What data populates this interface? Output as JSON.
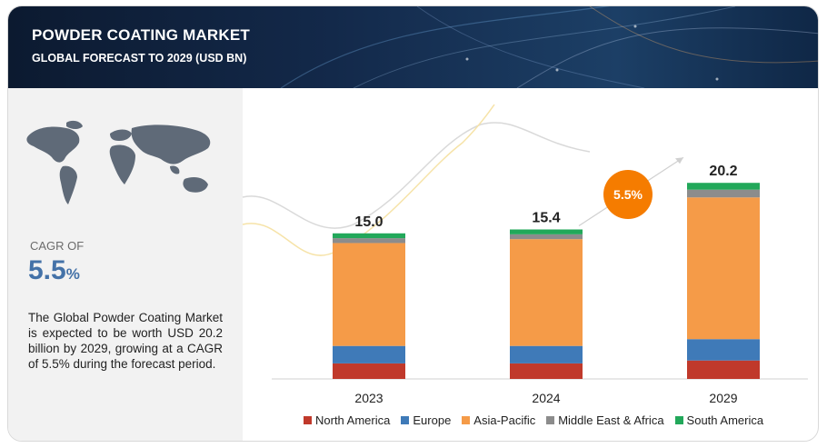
{
  "header": {
    "title": "POWDER COATING MARKET",
    "subtitle": "GLOBAL FORECAST TO 2029 (USD BN)"
  },
  "panel": {
    "cagr_label": "CAGR OF",
    "cagr_number": "5.5",
    "cagr_unit": "%",
    "description": "The Global Powder Coating Market is expected to be worth USD 20.2 billion by 2029, growing at a CAGR of 5.5% during the forecast period."
  },
  "chart_data": {
    "type": "bar",
    "stacked": true,
    "categories": [
      "2023",
      "2024",
      "2029"
    ],
    "totals": [
      "15.0",
      "15.4",
      "20.2"
    ],
    "series": [
      {
        "name": "North America",
        "color": "#c0392b",
        "values": [
          1.6,
          1.6,
          1.9
        ]
      },
      {
        "name": "Europe",
        "color": "#3f7ab8",
        "values": [
          1.8,
          1.8,
          2.2
        ]
      },
      {
        "name": "Asia-Pacific",
        "color": "#f59b48",
        "values": [
          10.6,
          11.0,
          14.6
        ]
      },
      {
        "name": "Middle East & Africa",
        "color": "#8c8c8c",
        "values": [
          0.5,
          0.5,
          0.8
        ]
      },
      {
        "name": "South America",
        "color": "#22a85a",
        "values": [
          0.5,
          0.5,
          0.7
        ]
      }
    ],
    "annotation": {
      "text": "5.5%",
      "color": "#f57c00"
    },
    "ylim": [
      0,
      22
    ],
    "legend_position": "bottom",
    "grid": false
  }
}
